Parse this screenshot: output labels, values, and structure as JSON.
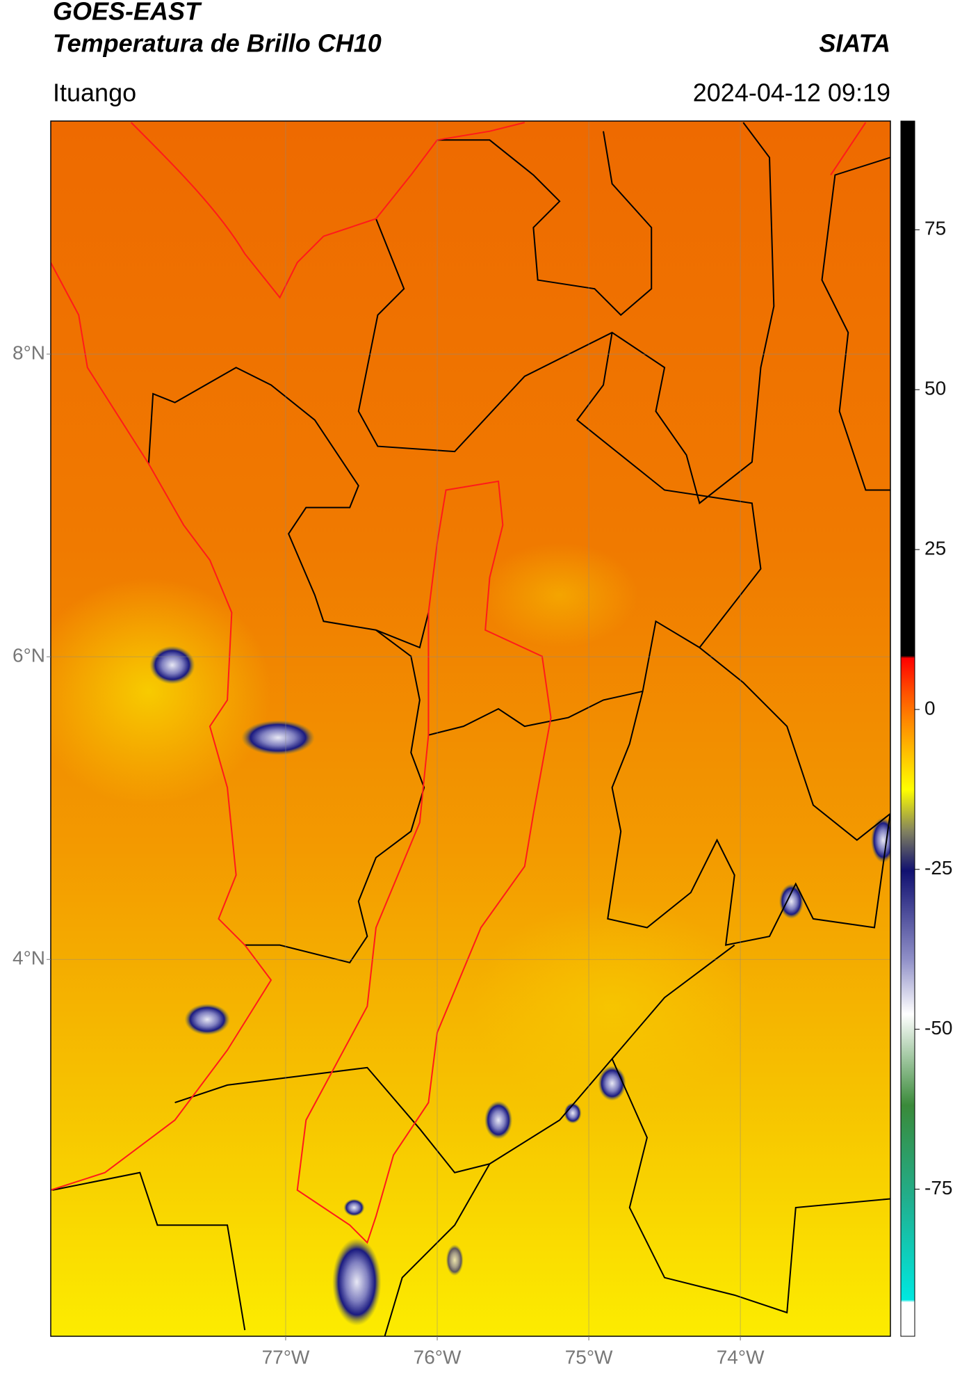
{
  "header": {
    "title": "GOES-EAST",
    "subtitle": "Temperatura de Brillo CH10",
    "source": "SIATA",
    "location": "Ituango",
    "datetime": "2024-04-12 09:19"
  },
  "chart_data": {
    "type": "map",
    "xlim": [
      -78.55,
      -73.01
    ],
    "ylim": [
      1.51,
      9.54
    ],
    "xticks": [
      {
        "value": -77,
        "label": "77°W"
      },
      {
        "value": -76,
        "label": "76°W"
      },
      {
        "value": -75,
        "label": "75°W"
      },
      {
        "value": -74,
        "label": "74°W"
      }
    ],
    "yticks": [
      {
        "value": 8,
        "label": "8°N"
      },
      {
        "value": 6,
        "label": "6°N"
      },
      {
        "value": 4,
        "label": "4°N"
      }
    ],
    "grid": true,
    "colorbar": {
      "lim": [
        -98,
        92
      ],
      "ticks": [
        -75,
        -50,
        -25,
        0,
        25,
        50,
        75
      ]
    }
  }
}
